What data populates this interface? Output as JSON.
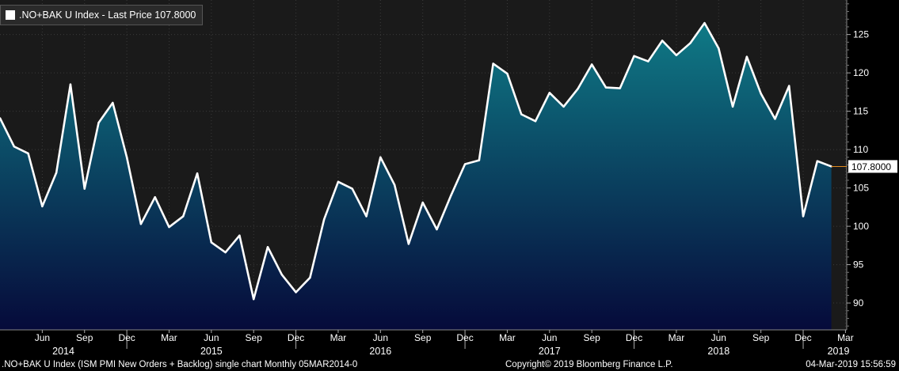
{
  "legend": {
    "label": ".NO+BAK U Index - Last Price 107.8000"
  },
  "footer": {
    "left": ".NO+BAK U Index (ISM PMI New Orders + Backlog) single chart  Monthly 05MAR2014-0",
    "center": "Copyright© 2019 Bloomberg Finance L.P.",
    "right": "04-Mar-2019 15:56:59"
  },
  "colors": {
    "plot_top": "#1a1a1a",
    "area_top": "#0f7a86",
    "area_bottom": "#060a3a",
    "line": "#ffffff",
    "last_marker": "#e08a1e",
    "last_label_bg": "#ffffff",
    "last_label_text": "#000000"
  },
  "chart_data": {
    "type": "area",
    "title": "",
    "xlabel": "",
    "ylabel": "",
    "ylim": [
      86.5,
      129.5
    ],
    "y_ticks": [
      90,
      95,
      100,
      105,
      110,
      115,
      120,
      125
    ],
    "y_axis_side": "right",
    "grid": true,
    "last_value": 107.8,
    "last_value_label": "107.8000",
    "x_month_ticks": [
      {
        "label": "Jun",
        "index": 3
      },
      {
        "label": "Sep",
        "index": 6
      },
      {
        "label": "Dec",
        "index": 9
      },
      {
        "label": "Mar",
        "index": 12
      },
      {
        "label": "Jun",
        "index": 15
      },
      {
        "label": "Sep",
        "index": 18
      },
      {
        "label": "Dec",
        "index": 21
      },
      {
        "label": "Mar",
        "index": 24
      },
      {
        "label": "Jun",
        "index": 27
      },
      {
        "label": "Sep",
        "index": 30
      },
      {
        "label": "Dec",
        "index": 33
      },
      {
        "label": "Mar",
        "index": 36
      },
      {
        "label": "Jun",
        "index": 39
      },
      {
        "label": "Sep",
        "index": 42
      },
      {
        "label": "Dec",
        "index": 45
      },
      {
        "label": "Mar",
        "index": 48
      },
      {
        "label": "Jun",
        "index": 51
      },
      {
        "label": "Sep",
        "index": 54
      },
      {
        "label": "Dec",
        "index": 57
      },
      {
        "label": "Mar",
        "index": 60
      }
    ],
    "x_year_labels": [
      {
        "label": "2014",
        "index": 4.5
      },
      {
        "label": "2015",
        "index": 15
      },
      {
        "label": "2016",
        "index": 27
      },
      {
        "label": "2017",
        "index": 39
      },
      {
        "label": "2018",
        "index": 51
      },
      {
        "label": "2019",
        "index": 59.5
      }
    ],
    "series": [
      {
        "values": [
          114.1,
          110.4,
          109.5,
          102.6,
          107.0,
          118.5,
          104.9,
          113.5,
          116.1,
          109.0,
          100.3,
          103.8,
          99.9,
          101.3,
          106.9,
          97.9,
          96.6,
          98.8,
          90.5,
          97.3,
          93.7,
          91.4,
          93.3,
          100.9,
          105.8,
          104.9,
          101.3,
          109.0,
          105.4,
          97.7,
          103.1,
          99.6,
          104.0,
          108.1,
          108.6,
          121.2,
          119.9,
          114.6,
          113.7,
          117.4,
          115.6,
          117.9,
          121.1,
          118.1,
          118.0,
          122.2,
          121.5,
          124.2,
          122.3,
          123.9,
          126.5,
          123.2,
          115.6,
          122.1,
          117.3,
          114.0,
          118.3,
          101.3,
          108.5,
          107.8
        ]
      }
    ]
  }
}
